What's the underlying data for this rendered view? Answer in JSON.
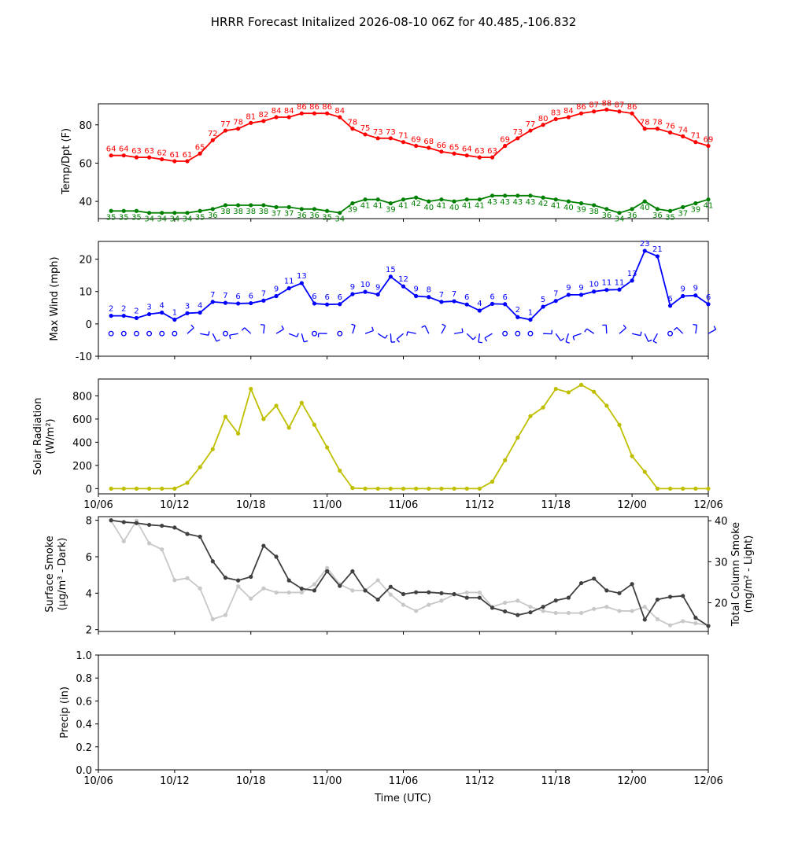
{
  "title": "HRRR Forecast Initalized 2026-08-10 06Z for 40.485,-106.832",
  "x_tick_labels": [
    "10/06",
    "10/12",
    "10/18",
    "11/00",
    "11/06",
    "11/12",
    "11/18",
    "12/00",
    "12/06"
  ],
  "xlabel": "Time (UTC)",
  "colors": {
    "temp": "#ff0000",
    "dewpoint": "#008000",
    "wind": "#0000ff",
    "solar": "#bfbf00",
    "smoke_dark": "#404040",
    "smoke_light": "#c8c8c8"
  },
  "chart_data": [
    {
      "type": "line",
      "panel": "temperature-dewpoint",
      "x": [
        "10/07",
        "10/08",
        "10/09",
        "10/10",
        "10/11",
        "10/12",
        "10/13",
        "10/14",
        "10/15",
        "10/16",
        "10/17",
        "10/18",
        "10/19",
        "10/20",
        "10/21",
        "10/22",
        "10/23",
        "11/00",
        "11/01",
        "11/02",
        "11/03",
        "11/04",
        "11/05",
        "11/06",
        "11/07",
        "11/08",
        "11/09",
        "11/10",
        "11/11",
        "11/12",
        "11/13",
        "11/14",
        "11/15",
        "11/16",
        "11/17",
        "11/18",
        "11/19",
        "11/20",
        "11/21",
        "11/22",
        "11/23",
        "12/00",
        "12/01",
        "12/02",
        "12/03",
        "12/04",
        "12/05",
        "12/06"
      ],
      "ylabel": "Temp/Dpt (F)",
      "ylim": [
        31,
        91
      ],
      "yticks": [
        40,
        60,
        80
      ],
      "grid": false,
      "series": [
        {
          "values": [
            64,
            64,
            63,
            63,
            62,
            61,
            61,
            65,
            72,
            77,
            78,
            81,
            82,
            84,
            84,
            86,
            86,
            86,
            84,
            78,
            75,
            73,
            73,
            71,
            69,
            68,
            66,
            65,
            64,
            63,
            63,
            69,
            73,
            77,
            80,
            83,
            84,
            86,
            87,
            88,
            87,
            86,
            78,
            78,
            76,
            74,
            71,
            69
          ]
        },
        {
          "values": [
            35,
            35,
            35,
            34,
            34,
            34,
            34,
            35,
            36,
            38,
            38,
            38,
            38,
            37,
            37,
            36,
            36,
            35,
            34,
            39,
            41,
            41,
            39,
            41,
            42,
            40,
            41,
            40,
            41,
            41,
            43,
            43,
            43,
            43,
            42,
            41,
            40,
            39,
            38,
            36,
            34,
            36,
            40,
            36,
            35,
            37,
            39,
            41
          ]
        }
      ]
    },
    {
      "type": "line",
      "panel": "max-wind",
      "x": [
        "10/07",
        "10/08",
        "10/09",
        "10/10",
        "10/11",
        "10/12",
        "10/13",
        "10/14",
        "10/15",
        "10/16",
        "10/17",
        "10/18",
        "10/19",
        "10/20",
        "10/21",
        "10/22",
        "10/23",
        "11/00",
        "11/01",
        "11/02",
        "11/03",
        "11/04",
        "11/05",
        "11/06",
        "11/07",
        "11/08",
        "11/09",
        "11/10",
        "11/11",
        "11/12",
        "11/13",
        "11/14",
        "11/15",
        "11/16",
        "11/17",
        "11/18",
        "11/19",
        "11/20",
        "11/21",
        "11/22",
        "11/23",
        "12/00",
        "12/01",
        "12/02",
        "12/03",
        "12/04",
        "12/05",
        "12/06"
      ],
      "ylabel": "Max Wind (mph)",
      "ylim": [
        -10,
        25.5
      ],
      "yticks": [
        -10,
        0,
        10,
        20
      ],
      "grid": false,
      "series": [
        {
          "values": [
            2.5,
            2.5,
            1.8,
            3,
            3.5,
            1.3,
            3.3,
            3.5,
            6.8,
            6.5,
            6.3,
            6.4,
            7.2,
            8.6,
            11,
            12.6,
            6.3,
            6,
            6.1,
            9.2,
            9.9,
            9.1,
            14.6,
            11.6,
            8.6,
            8.3,
            6.8,
            7,
            6,
            4.1,
            6.2,
            6.1,
            2.1,
            1.3,
            5.3,
            7.1,
            9,
            9,
            10,
            10.5,
            10.6,
            13.4,
            22.6,
            20.9,
            5.6,
            8.6,
            8.8,
            6.1
          ],
          "labels": [
            "2",
            "2",
            "2",
            "3",
            "4",
            "1",
            "3",
            "4",
            "7",
            "7",
            "6",
            "6",
            "7",
            "9",
            "11",
            "13",
            "6",
            "6",
            "6",
            "9",
            "10",
            "9",
            "15",
            "12",
            "9",
            "8",
            "7",
            "7",
            "6",
            "4",
            "6",
            "6",
            "2",
            "1",
            "5",
            "7",
            "9",
            "9",
            "10",
            "11",
            "11",
            "13",
            "23",
            "21",
            "6",
            "9",
            "9",
            "6"
          ]
        }
      ],
      "wind_barbs": [
        "calm",
        "calm",
        "calm",
        "calm",
        "calm",
        "calm",
        "barb",
        "barb",
        "barb",
        "calm",
        "barb",
        "barb",
        "barb",
        "barb",
        "barb",
        "barb",
        "calm",
        "barb",
        "calm",
        "barb",
        "barb",
        "barb",
        "barb",
        "barb",
        "barb",
        "barb",
        "barb",
        "barb",
        "barb",
        "barb",
        "barb",
        "calm",
        "calm",
        "calm",
        "barb",
        "barb",
        "barb",
        "barb",
        "barb",
        "barb",
        "barb",
        "barb",
        "barb",
        "barb",
        "calm",
        "barb",
        "barb",
        "barb"
      ]
    },
    {
      "type": "line",
      "panel": "solar-radiation",
      "x": [
        "10/07",
        "10/08",
        "10/09",
        "10/10",
        "10/11",
        "10/12",
        "10/13",
        "10/14",
        "10/15",
        "10/16",
        "10/17",
        "10/18",
        "10/19",
        "10/20",
        "10/21",
        "10/22",
        "10/23",
        "11/00",
        "11/01",
        "11/02",
        "11/03",
        "11/04",
        "11/05",
        "11/06",
        "11/07",
        "11/08",
        "11/09",
        "11/10",
        "11/11",
        "11/12",
        "11/13",
        "11/14",
        "11/15",
        "11/16",
        "11/17",
        "11/18",
        "11/19",
        "11/20",
        "11/21",
        "11/22",
        "11/23",
        "12/00",
        "12/01",
        "12/02",
        "12/03",
        "12/04",
        "12/05",
        "12/06"
      ],
      "ylabel": "Solar Radiation",
      "ylabel_unit": "(W/m²)",
      "ylim": [
        -45,
        945
      ],
      "yticks": [
        0,
        200,
        400,
        600,
        800
      ],
      "grid": false,
      "series": [
        {
          "values": [
            0,
            0,
            0,
            0,
            0,
            0,
            50,
            185,
            340,
            620,
            475,
            860,
            600,
            715,
            525,
            740,
            550,
            355,
            155,
            5,
            0,
            0,
            0,
            0,
            0,
            0,
            0,
            0,
            0,
            0,
            60,
            245,
            440,
            625,
            700,
            860,
            830,
            895,
            835,
            715,
            550,
            280,
            145,
            0,
            0,
            0,
            0,
            0
          ]
        }
      ]
    },
    {
      "type": "line",
      "panel": "smoke",
      "x": [
        "10/07",
        "10/08",
        "10/09",
        "10/10",
        "10/11",
        "10/12",
        "10/13",
        "10/14",
        "10/15",
        "10/16",
        "10/17",
        "10/18",
        "10/19",
        "10/20",
        "10/21",
        "10/22",
        "10/23",
        "11/00",
        "11/01",
        "11/02",
        "11/03",
        "11/04",
        "11/05",
        "11/06",
        "11/07",
        "11/08",
        "11/09",
        "11/10",
        "11/11",
        "11/12",
        "11/13",
        "11/14",
        "11/15",
        "11/16",
        "11/17",
        "11/18",
        "11/19",
        "11/20",
        "11/21",
        "11/22",
        "11/23",
        "12/00",
        "12/01",
        "12/02",
        "12/03",
        "12/04",
        "12/05",
        "12/06"
      ],
      "ylabel": "Surface Smoke",
      "ylabel_unit": "(μg/m³ - Dark)",
      "ylim": [
        1.9,
        8.2
      ],
      "yticks": [
        2,
        4,
        6,
        8
      ],
      "ylabel_right": "Total Column Smoke",
      "ylabel_right_unit": "(mg/m² - Light)",
      "ylim_right": [
        13,
        41
      ],
      "yticks_right": [
        20,
        30,
        40
      ],
      "grid": false,
      "series": [
        {
          "axis": "left",
          "values": [
            8,
            7.9,
            7.85,
            7.75,
            7.7,
            7.6,
            7.25,
            7.1,
            5.75,
            4.85,
            4.7,
            4.9,
            6.6,
            6,
            4.7,
            4.25,
            4.15,
            5.2,
            4.4,
            5.2,
            4.15,
            3.65,
            4.35,
            3.95,
            4.05,
            4.05,
            4,
            3.95,
            3.75,
            3.75,
            3.2,
            3,
            2.8,
            2.95,
            3.25,
            3.6,
            3.75,
            4.55,
            4.8,
            4.15,
            4,
            4.5,
            2.55,
            3.65,
            3.8,
            3.85,
            2.65,
            2.2
          ]
        },
        {
          "axis": "right",
          "values": [
            40,
            35,
            40,
            34.5,
            33,
            25.5,
            26,
            23.5,
            16,
            17,
            24,
            21,
            23.5,
            22.5,
            22.5,
            22.5,
            24.5,
            28.5,
            24.5,
            23,
            23,
            25.5,
            22,
            19.5,
            18,
            19.5,
            20.5,
            22,
            22.5,
            22.5,
            19,
            20,
            20.5,
            19,
            18,
            17.5,
            17.5,
            17.5,
            18.5,
            19,
            18,
            18,
            19,
            16,
            14.5,
            15.5,
            15,
            14.5
          ]
        }
      ]
    },
    {
      "type": "line",
      "panel": "precip",
      "x": [],
      "ylabel": "Precip (in)",
      "ylim": [
        0,
        1
      ],
      "yticks": [
        "0.0",
        "0.2",
        "0.4",
        "0.6",
        "0.8",
        "1.0"
      ],
      "grid": false,
      "series": []
    }
  ]
}
